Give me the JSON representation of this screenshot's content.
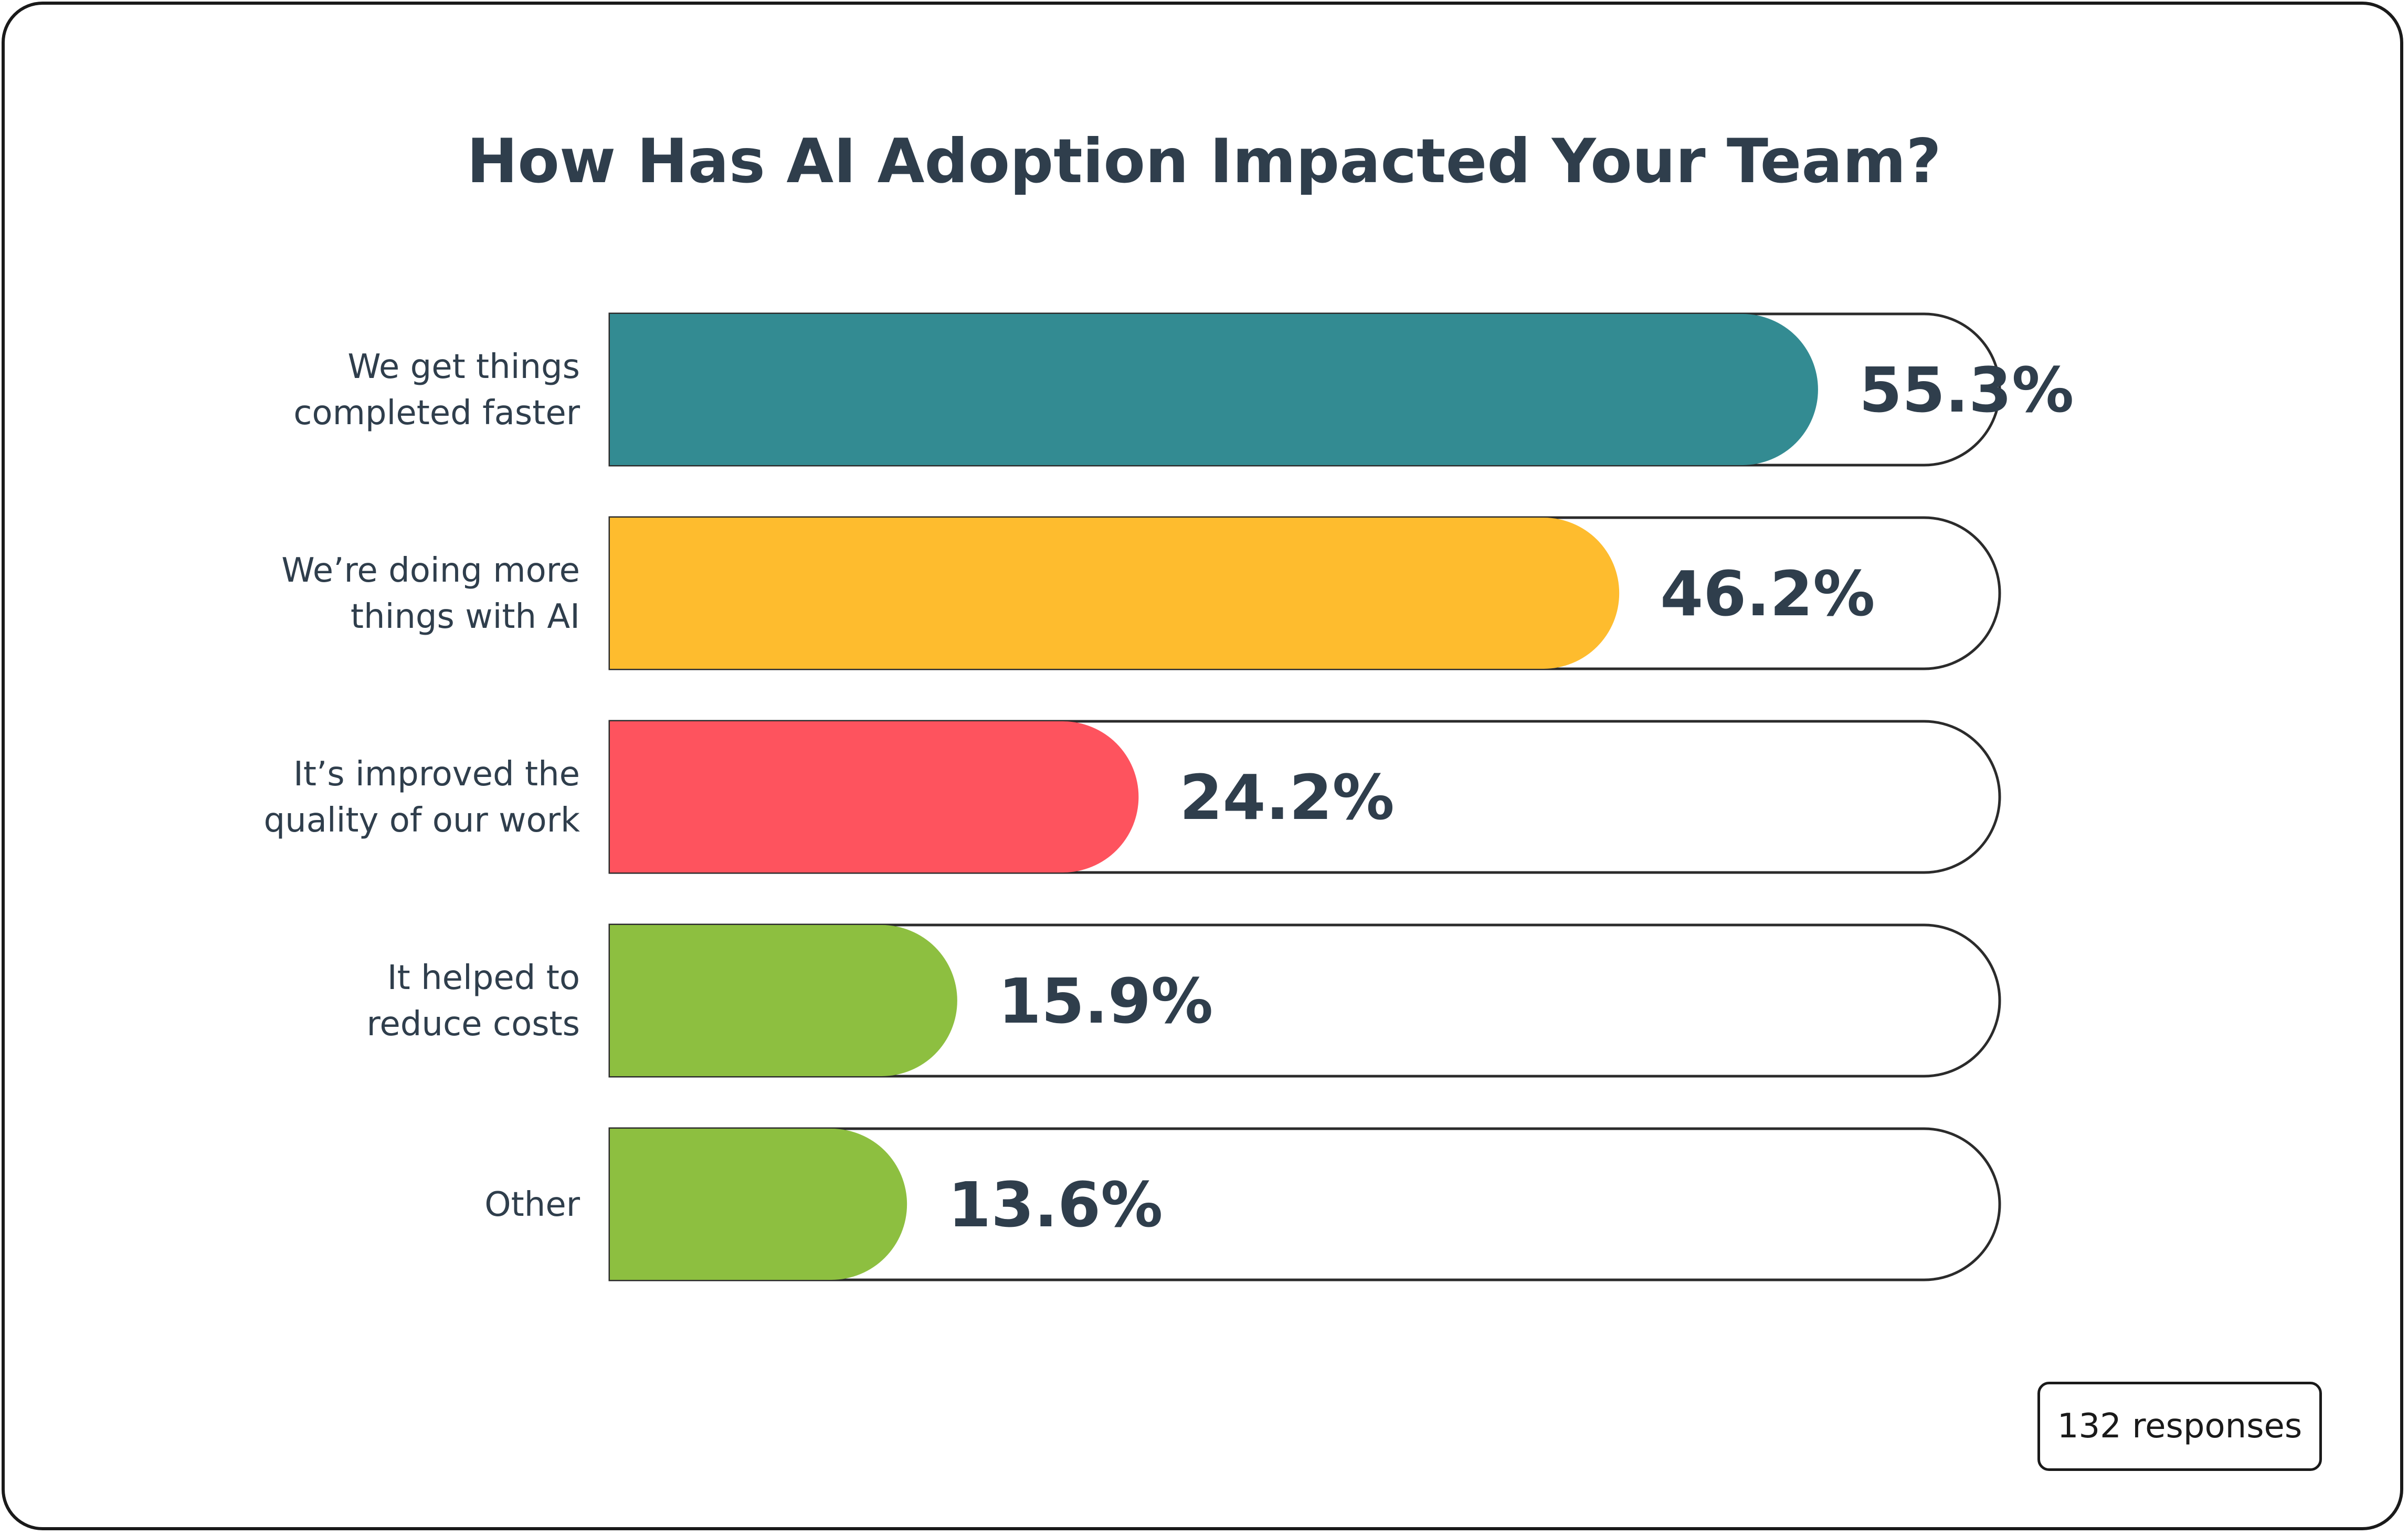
{
  "chart_data": {
    "type": "bar",
    "orientation": "horizontal",
    "title": "How Has AI Adoption Impacted Your Team?",
    "categories": [
      [
        "We get things",
        "completed faster"
      ],
      [
        "We’re doing more",
        "things with AI"
      ],
      [
        "It’s improved the",
        "quality of our work"
      ],
      [
        "It helped to",
        "reduce costs"
      ],
      [
        "Other"
      ]
    ],
    "values": [
      55.3,
      46.2,
      24.2,
      15.9,
      13.6
    ],
    "value_labels": [
      "55.3%",
      "46.2%",
      "24.2%",
      "15.9%",
      "13.6%"
    ],
    "colors": [
      "#338b92",
      "#febc2e",
      "#fe535e",
      "#8dbf40",
      "#8dbf40"
    ],
    "xlim": [
      0,
      100
    ],
    "grid": false,
    "legend": "none"
  },
  "footer": {
    "responses_label": "132 responses"
  }
}
